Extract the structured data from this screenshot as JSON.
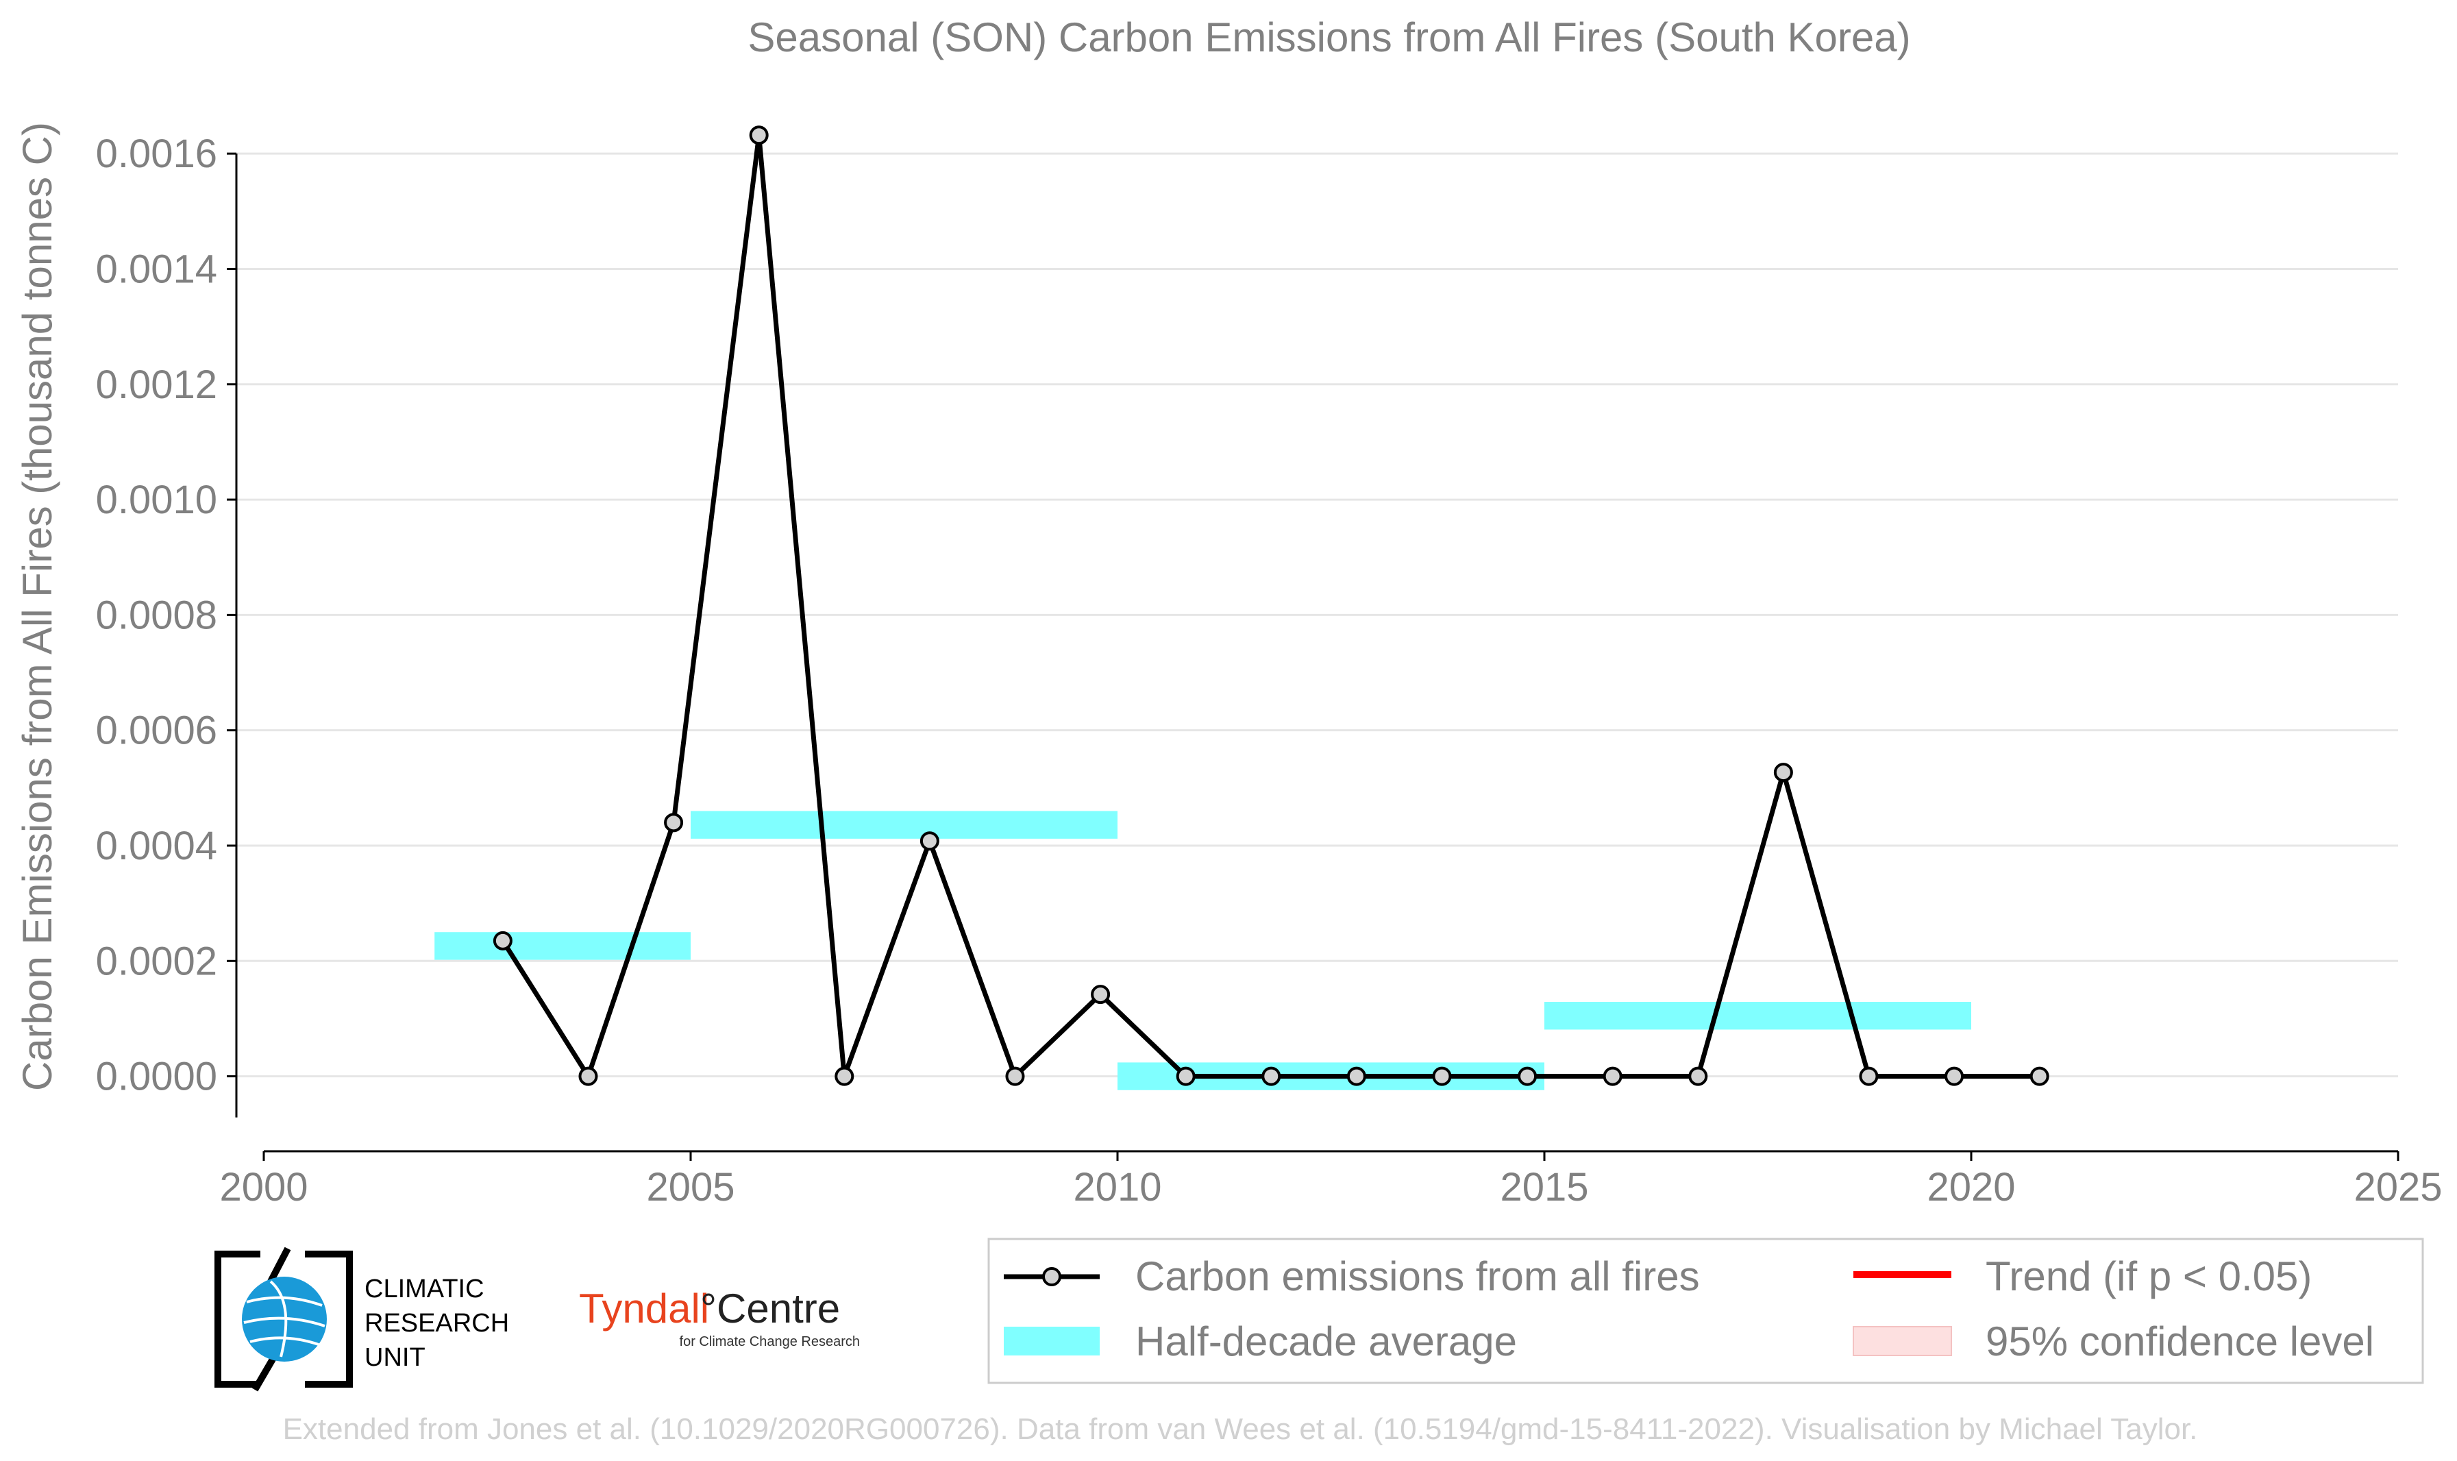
{
  "chart_data": {
    "type": "line",
    "title": "Seasonal (SON) Carbon Emissions from All Fires (South Korea)",
    "ylabel": "Carbon Emissions from All Fires (thousand tonnes C)",
    "xlabel": "",
    "xlim": [
      2000,
      2025
    ],
    "ylim": [
      -0.00013,
      0.0017
    ],
    "x_ticks": [
      2000,
      2005,
      2010,
      2015,
      2020,
      2025
    ],
    "x_tick_labels": [
      "2000",
      "2005",
      "2010",
      "2015",
      "2020",
      "2025"
    ],
    "y_ticks": [
      0,
      0.0002,
      0.0004,
      0.0006,
      0.0008,
      0.001,
      0.0012,
      0.0014,
      0.0016
    ],
    "y_tick_labels": [
      "0.0000",
      "0.0002",
      "0.0004",
      "0.0006",
      "0.0008",
      "0.0010",
      "0.0012",
      "0.0014",
      "0.0016"
    ],
    "grid": true,
    "series": [
      {
        "name": "Carbon emissions from all fires",
        "color": "#000000",
        "marker_fill": "#d3d3d3",
        "x": [
          2002.8,
          2003.8,
          2004.8,
          2005.8,
          2006.8,
          2007.8,
          2008.8,
          2009.8,
          2010.8,
          2011.8,
          2012.8,
          2013.8,
          2014.8,
          2015.8,
          2016.8,
          2017.8,
          2018.8,
          2019.8,
          2020.8
        ],
        "y": [
          0.000235,
          0.0,
          0.00044,
          0.001632,
          0.0,
          0.000408,
          0.0,
          0.000142,
          0.0,
          0.0,
          0.0,
          0.0,
          0.0,
          0.0,
          0.0,
          0.000527,
          0.0,
          0.0,
          0.0
        ]
      }
    ],
    "half_decade_average": {
      "name": "Half-decade average",
      "color": "#80ffff",
      "segments": [
        {
          "x0": 2002,
          "x1": 2005,
          "y": 0.000226
        },
        {
          "x0": 2005,
          "x1": 2010,
          "y": 0.000436
        },
        {
          "x0": 2010,
          "x1": 2015,
          "y": 0.0
        },
        {
          "x0": 2015,
          "x1": 2020,
          "y": 0.000105
        }
      ]
    },
    "legend": {
      "placement": "bottom-right",
      "entries": [
        {
          "label": "Carbon emissions from all fires",
          "kind": "line-marker",
          "color": "#000000"
        },
        {
          "label": "Trend (if p < 0.05)",
          "kind": "line",
          "color": "#ff0000"
        },
        {
          "label": "Half-decade average",
          "kind": "band",
          "color": "#80ffff"
        },
        {
          "label": "95% confidence level",
          "kind": "band",
          "color": "#fde0e0"
        }
      ]
    }
  },
  "logos": {
    "cru_lines": [
      "CLIMATIC",
      "RESEARCH",
      "UNIT"
    ],
    "tyndall_main": "Tyndall",
    "tyndall_main2": "°Centre",
    "tyndall_sub": "for Climate Change Research"
  },
  "credit": "Extended from Jones et al. (10.1029/2020RG000726). Data from van Wees et al. (10.5194/gmd-15-8411-2022). Visualisation by Michael Taylor."
}
